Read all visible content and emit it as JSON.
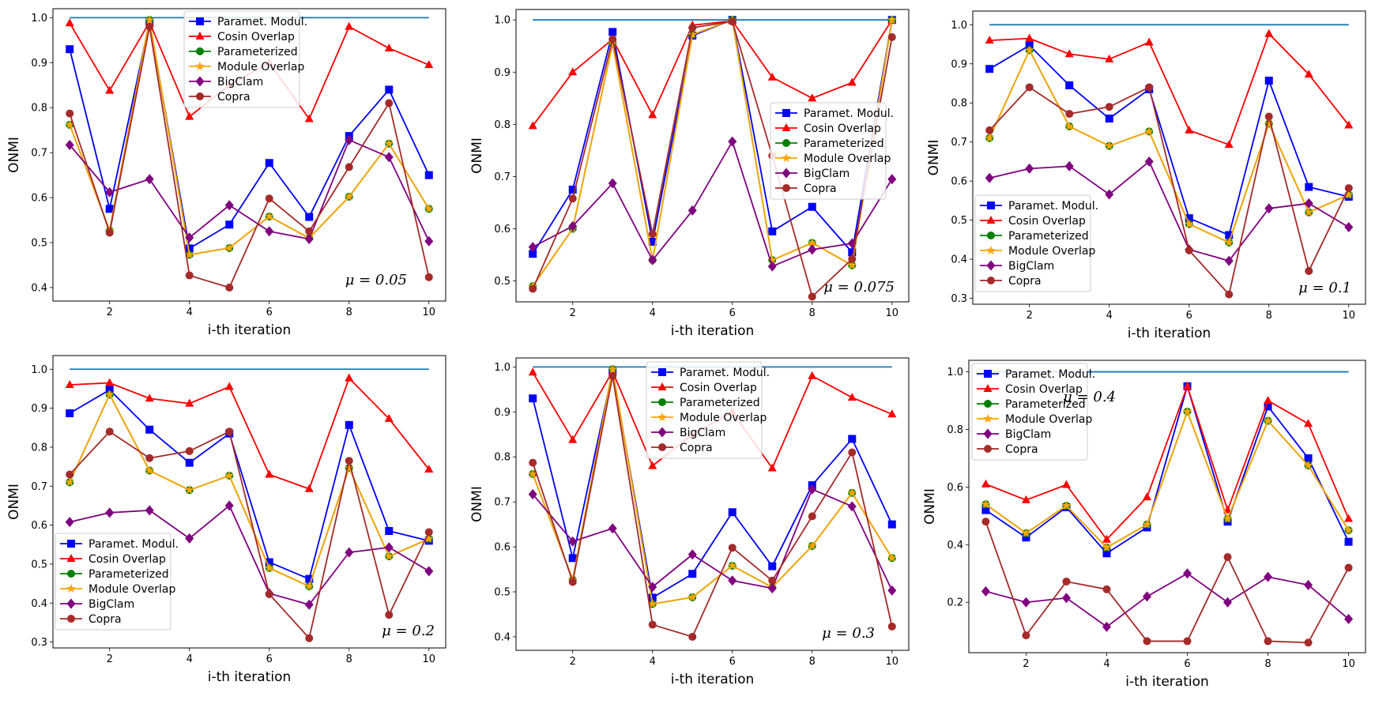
{
  "colors": {
    "Paramet. Modul.": "#0000ff",
    "Cosin Overlap": "#ff0000",
    "Parameterized": "#008000",
    "Module Overlap": "#ffa500",
    "BigClam": "#800080",
    "Copra": "#a52a2a",
    "Reference": "#1f77b4"
  },
  "legend_labels": [
    "Paramet. Modul.",
    "Cosin Overlap",
    "Parameterized",
    "Module Overlap",
    "BigClam",
    "Copra"
  ],
  "chart_data": [
    {
      "type": "line",
      "mu_label": "μ = 0.05",
      "xlabel": "i-th iteration",
      "ylabel": "ONMI",
      "x": [
        1,
        2,
        3,
        4,
        5,
        6,
        7,
        8,
        9,
        10
      ],
      "xticks": [
        2,
        4,
        6,
        8,
        10
      ],
      "yticks": [
        0.4,
        0.5,
        0.6,
        0.7,
        0.8,
        0.9,
        1.0
      ],
      "ylim": [
        0.37,
        1.02
      ],
      "legend_position": "top-center",
      "reference": [
        1,
        1,
        1,
        1,
        1,
        1,
        1,
        1,
        1,
        1
      ],
      "series": [
        {
          "name": "Paramet. Modul.",
          "values": [
            0.93,
            0.575,
            0.99,
            0.487,
            0.54,
            0.677,
            0.557,
            0.737,
            0.84,
            0.65
          ]
        },
        {
          "name": "Cosin Overlap",
          "values": [
            0.988,
            0.838,
            0.99,
            0.78,
            0.85,
            0.9,
            0.775,
            0.98,
            0.932,
            0.895
          ]
        },
        {
          "name": "Parameterized",
          "values": [
            0.762,
            0.527,
            0.995,
            0.473,
            0.488,
            0.558,
            0.51,
            0.602,
            0.72,
            0.575
          ]
        },
        {
          "name": "Module Overlap",
          "values": [
            0.762,
            0.527,
            0.995,
            0.473,
            0.488,
            0.558,
            0.51,
            0.602,
            0.72,
            0.575
          ]
        },
        {
          "name": "BigClam",
          "values": [
            0.717,
            0.612,
            0.641,
            0.511,
            0.583,
            0.525,
            0.508,
            0.728,
            0.69,
            0.503
          ]
        },
        {
          "name": "Copra",
          "values": [
            0.787,
            0.522,
            0.98,
            0.427,
            0.4,
            0.598,
            0.525,
            0.668,
            0.81,
            0.423
          ]
        }
      ]
    },
    {
      "type": "line",
      "mu_label": "μ = 0.075",
      "xlabel": "i-th iteration",
      "ylabel": "ONMI",
      "x": [
        1,
        2,
        3,
        4,
        5,
        6,
        7,
        8,
        9,
        10
      ],
      "xticks": [
        2,
        4,
        6,
        8,
        10
      ],
      "yticks": [
        0.5,
        0.6,
        0.7,
        0.8,
        0.9,
        1.0
      ],
      "ylim": [
        0.46,
        1.02
      ],
      "legend_position": "center-right",
      "reference": [
        1,
        1,
        1,
        1,
        1,
        1,
        1,
        1,
        1,
        1
      ],
      "series": [
        {
          "name": "Paramet. Modul.",
          "values": [
            0.552,
            0.675,
            0.977,
            0.575,
            0.97,
            1.0,
            0.595,
            0.642,
            0.555,
            1.0
          ]
        },
        {
          "name": "Cosin Overlap",
          "values": [
            0.797,
            0.9,
            0.963,
            0.818,
            0.99,
            0.998,
            0.89,
            0.85,
            0.88,
            1.0
          ]
        },
        {
          "name": "Parameterized",
          "values": [
            0.49,
            0.6,
            0.955,
            0.54,
            0.972,
            1.0,
            0.54,
            0.573,
            0.53,
            1.0
          ]
        },
        {
          "name": "Module Overlap",
          "values": [
            0.49,
            0.6,
            0.955,
            0.54,
            0.972,
            1.0,
            0.54,
            0.573,
            0.53,
            1.0
          ]
        },
        {
          "name": "BigClam",
          "values": [
            0.565,
            0.605,
            0.687,
            0.54,
            0.635,
            0.767,
            0.528,
            0.56,
            0.572,
            0.695
          ]
        },
        {
          "name": "Copra",
          "values": [
            0.485,
            0.658,
            0.963,
            0.59,
            0.985,
            0.997,
            0.74,
            0.47,
            0.542,
            0.967
          ]
        }
      ]
    },
    {
      "type": "line",
      "mu_label": "μ = 0.1",
      "xlabel": "i-th iteration",
      "ylabel": "ONMI",
      "x": [
        1,
        2,
        3,
        4,
        5,
        6,
        7,
        8,
        9,
        10
      ],
      "xticks": [
        2,
        4,
        6,
        8,
        10
      ],
      "yticks": [
        0.3,
        0.4,
        0.5,
        0.6,
        0.7,
        0.8,
        0.9,
        1.0
      ],
      "ylim": [
        0.285,
        1.035
      ],
      "legend_position": "lower-left",
      "reference": [
        1,
        1,
        1,
        1,
        1,
        1,
        1,
        1,
        1,
        1
      ],
      "series": [
        {
          "name": "Paramet. Modul.",
          "values": [
            0.887,
            0.947,
            0.845,
            0.76,
            0.835,
            0.505,
            0.462,
            0.857,
            0.585,
            0.56
          ]
        },
        {
          "name": "Cosin Overlap",
          "values": [
            0.96,
            0.965,
            0.925,
            0.912,
            0.955,
            0.73,
            0.693,
            0.977,
            0.873,
            0.743
          ]
        },
        {
          "name": "Parameterized",
          "values": [
            0.71,
            0.935,
            0.74,
            0.69,
            0.727,
            0.49,
            0.443,
            0.747,
            0.52,
            0.565
          ]
        },
        {
          "name": "Module Overlap",
          "values": [
            0.71,
            0.935,
            0.74,
            0.69,
            0.727,
            0.49,
            0.443,
            0.747,
            0.52,
            0.565
          ]
        },
        {
          "name": "BigClam",
          "values": [
            0.608,
            0.632,
            0.638,
            0.566,
            0.65,
            0.425,
            0.396,
            0.53,
            0.543,
            0.482
          ]
        },
        {
          "name": "Copra",
          "values": [
            0.73,
            0.84,
            0.772,
            0.79,
            0.84,
            0.423,
            0.31,
            0.765,
            0.37,
            0.582
          ]
        }
      ]
    },
    {
      "type": "line",
      "mu_label": "μ = 0.2",
      "xlabel": "i-th iteration",
      "ylabel": "ONMI",
      "x": [
        1,
        2,
        3,
        4,
        5,
        6,
        7,
        8,
        9,
        10
      ],
      "xticks": [
        2,
        4,
        6,
        8,
        10
      ],
      "yticks": [
        0.3,
        0.4,
        0.5,
        0.6,
        0.7,
        0.8,
        0.9,
        1.0
      ],
      "ylim": [
        0.285,
        1.035
      ],
      "legend_position": "lower-left",
      "reference": [
        1,
        1,
        1,
        1,
        1,
        1,
        1,
        1,
        1,
        1
      ],
      "series": [
        {
          "name": "Paramet. Modul.",
          "values": [
            0.887,
            0.947,
            0.845,
            0.76,
            0.835,
            0.505,
            0.462,
            0.857,
            0.585,
            0.56
          ]
        },
        {
          "name": "Cosin Overlap",
          "values": [
            0.96,
            0.965,
            0.925,
            0.912,
            0.955,
            0.73,
            0.693,
            0.977,
            0.873,
            0.743
          ]
        },
        {
          "name": "Parameterized",
          "values": [
            0.71,
            0.935,
            0.74,
            0.69,
            0.727,
            0.49,
            0.443,
            0.747,
            0.52,
            0.565
          ]
        },
        {
          "name": "Module Overlap",
          "values": [
            0.71,
            0.935,
            0.74,
            0.69,
            0.727,
            0.49,
            0.443,
            0.747,
            0.52,
            0.565
          ]
        },
        {
          "name": "BigClam",
          "values": [
            0.608,
            0.632,
            0.638,
            0.566,
            0.65,
            0.425,
            0.396,
            0.53,
            0.543,
            0.482
          ]
        },
        {
          "name": "Copra",
          "values": [
            0.73,
            0.84,
            0.772,
            0.79,
            0.84,
            0.423,
            0.31,
            0.765,
            0.37,
            0.582
          ]
        }
      ]
    },
    {
      "type": "line",
      "mu_label": "μ = 0.3",
      "xlabel": "i-th iteration",
      "ylabel": "ONMI",
      "x": [
        1,
        2,
        3,
        4,
        5,
        6,
        7,
        8,
        9,
        10
      ],
      "xticks": [
        2,
        4,
        6,
        8,
        10
      ],
      "yticks": [
        0.4,
        0.5,
        0.6,
        0.7,
        0.8,
        0.9,
        1.0
      ],
      "ylim": [
        0.37,
        1.02
      ],
      "legend_position": "top-center",
      "reference": [
        1,
        1,
        1,
        1,
        1,
        1,
        1,
        1,
        1,
        1
      ],
      "series": [
        {
          "name": "Paramet. Modul.",
          "values": [
            0.93,
            0.575,
            0.99,
            0.487,
            0.54,
            0.677,
            0.557,
            0.737,
            0.84,
            0.65
          ]
        },
        {
          "name": "Cosin Overlap",
          "values": [
            0.988,
            0.838,
            0.99,
            0.78,
            0.85,
            0.9,
            0.775,
            0.98,
            0.932,
            0.895
          ]
        },
        {
          "name": "Parameterized",
          "values": [
            0.762,
            0.527,
            0.995,
            0.473,
            0.488,
            0.558,
            0.51,
            0.602,
            0.72,
            0.575
          ]
        },
        {
          "name": "Module Overlap",
          "values": [
            0.762,
            0.527,
            0.995,
            0.473,
            0.488,
            0.558,
            0.51,
            0.602,
            0.72,
            0.575
          ]
        },
        {
          "name": "BigClam",
          "values": [
            0.717,
            0.612,
            0.641,
            0.511,
            0.583,
            0.525,
            0.508,
            0.728,
            0.69,
            0.503
          ]
        },
        {
          "name": "Copra",
          "values": [
            0.787,
            0.522,
            0.98,
            0.427,
            0.4,
            0.598,
            0.525,
            0.668,
            0.81,
            0.423
          ]
        }
      ]
    },
    {
      "type": "line",
      "mu_label": "μ = 0.4",
      "xlabel": "i-th iteration",
      "ylabel": "ONMI",
      "x": [
        1,
        2,
        3,
        4,
        5,
        6,
        7,
        8,
        9,
        10
      ],
      "xticks": [
        2,
        4,
        6,
        8,
        10
      ],
      "yticks": [
        0.2,
        0.4,
        0.6,
        0.8,
        1.0
      ],
      "ylim": [
        0.025,
        1.04
      ],
      "legend_position": "top-left",
      "reference": [
        1,
        1,
        1,
        1,
        1,
        1,
        1,
        1,
        1,
        1
      ],
      "series": [
        {
          "name": "Paramet. Modul.",
          "values": [
            0.52,
            0.425,
            0.53,
            0.37,
            0.46,
            0.95,
            0.48,
            0.88,
            0.7,
            0.41
          ]
        },
        {
          "name": "Cosin Overlap",
          "values": [
            0.61,
            0.555,
            0.608,
            0.418,
            0.565,
            0.95,
            0.52,
            0.9,
            0.82,
            0.49
          ]
        },
        {
          "name": "Parameterized",
          "values": [
            0.54,
            0.44,
            0.535,
            0.39,
            0.47,
            0.862,
            0.49,
            0.83,
            0.675,
            0.45
          ]
        },
        {
          "name": "Module Overlap",
          "values": [
            0.54,
            0.44,
            0.535,
            0.39,
            0.47,
            0.862,
            0.49,
            0.83,
            0.675,
            0.45
          ]
        },
        {
          "name": "BigClam",
          "values": [
            0.238,
            0.2,
            0.215,
            0.115,
            0.22,
            0.3,
            0.2,
            0.288,
            0.26,
            0.142
          ]
        },
        {
          "name": "Copra",
          "values": [
            0.48,
            0.085,
            0.272,
            0.245,
            0.065,
            0.065,
            0.357,
            0.065,
            0.06,
            0.32
          ]
        }
      ]
    }
  ]
}
